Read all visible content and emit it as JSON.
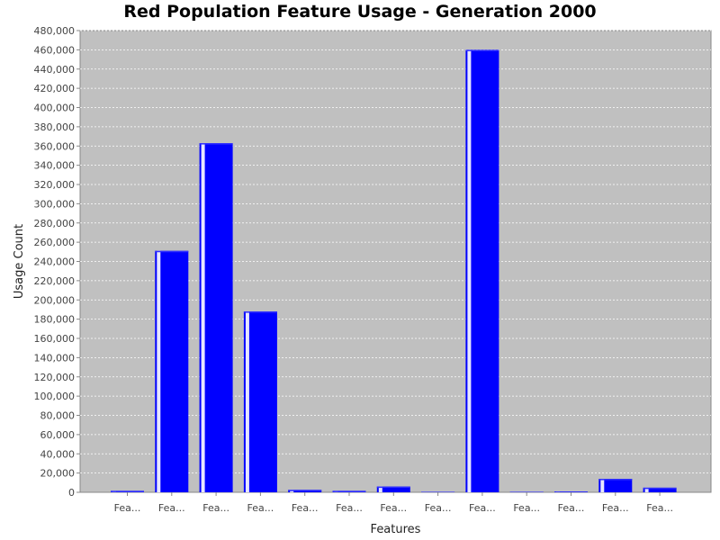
{
  "chart_data": {
    "type": "bar",
    "title": "Red Population Feature Usage - Generation 2000",
    "xlabel": "Features",
    "ylabel": "Usage Count",
    "ylim": [
      0,
      480000
    ],
    "ytick_step": 20000,
    "grid": true,
    "legend": "none",
    "bar_color": "#0000ff",
    "plot_background": "#c0c0c0",
    "grid_color": "#ffffff",
    "categories": [
      "Fea...",
      "Fea...",
      "Fea...",
      "Fea...",
      "Fea...",
      "Fea...",
      "Fea...",
      "Fea...",
      "Fea...",
      "Fea...",
      "Fea...",
      "Fea...",
      "Fea..."
    ],
    "values": [
      1500,
      251000,
      363000,
      188000,
      2500,
      1500,
      6000,
      500,
      460000,
      500,
      800,
      14000,
      4800
    ]
  }
}
